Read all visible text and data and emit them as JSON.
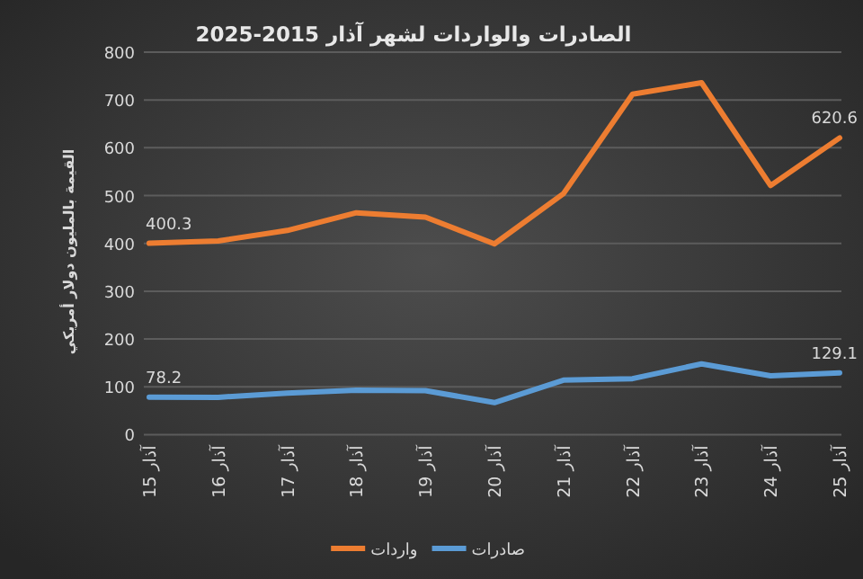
{
  "chart_data": {
    "type": "line",
    "title": "الصادرات والواردات لشهر آذار 2015-2025",
    "ylabel": "القيمة بالمليون دولار أمريكي",
    "categories": [
      "آذار 15",
      "آذار 16",
      "آذار 17",
      "آذار 18",
      "آذار 19",
      "آذار 20",
      "آذار 21",
      "آذار 22",
      "آذار 23",
      "آذار 24",
      "آذار 25"
    ],
    "series": [
      {
        "name": "صادرات",
        "color": "#5b9bd5",
        "values": [
          78.2,
          78,
          87,
          93,
          92,
          67,
          114,
          117,
          148,
          123,
          129.1
        ],
        "value_labels": [
          "78.2",
          null,
          null,
          null,
          null,
          null,
          null,
          null,
          null,
          null,
          "129.1"
        ]
      },
      {
        "name": "واردات",
        "color": "#ed7d31",
        "values": [
          400.3,
          405,
          427,
          464,
          455,
          399,
          504,
          712,
          736,
          521,
          620.6
        ],
        "value_labels": [
          "400.3",
          null,
          null,
          null,
          null,
          null,
          null,
          null,
          null,
          null,
          "620.6"
        ]
      }
    ],
    "ylim": [
      0,
      800
    ],
    "yticks": [
      0,
      100,
      200,
      300,
      400,
      500,
      600,
      700,
      800
    ],
    "grid": "y",
    "legend": "bottom",
    "marker": "none",
    "line_style": "solid"
  }
}
